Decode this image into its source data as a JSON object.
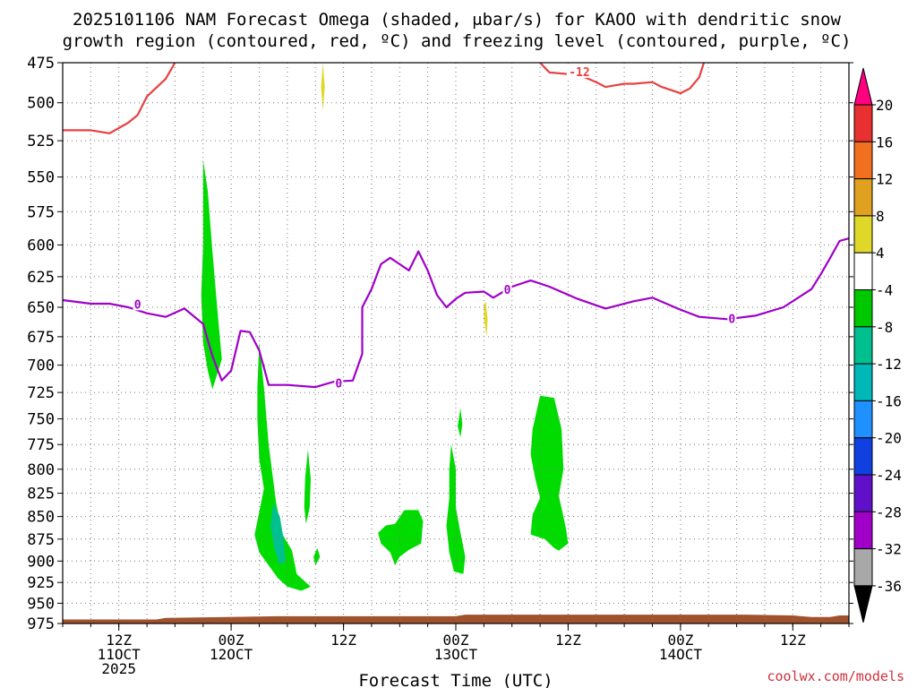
{
  "title_line1": "2025101106 NAM Forecast Omega (shaded, μbar/s) for KAOO with dendritic snow",
  "title_line2": "growth region (contoured, red, ºC) and freezing level (contoured, purple, ºC)",
  "xlabel": "Forecast Time (UTC)",
  "credit": "coolwx.com/models",
  "x_ticks": [
    {
      "hour": 6,
      "l1": "12Z",
      "l2": "11OCT",
      "l3": "2025"
    },
    {
      "hour": 18,
      "l1": "00Z",
      "l2": "12OCT",
      "l3": ""
    },
    {
      "hour": 30,
      "l1": "12Z",
      "l2": "",
      "l3": ""
    },
    {
      "hour": 42,
      "l1": "00Z",
      "l2": "13OCT",
      "l3": ""
    },
    {
      "hour": 54,
      "l1": "12Z",
      "l2": "",
      "l3": ""
    },
    {
      "hour": 66,
      "l1": "00Z",
      "l2": "14OCT",
      "l3": ""
    },
    {
      "hour": 78,
      "l1": "12Z",
      "l2": "",
      "l3": ""
    }
  ],
  "y_ticks": [
    475,
    500,
    525,
    550,
    575,
    600,
    625,
    650,
    675,
    700,
    725,
    750,
    775,
    800,
    825,
    850,
    875,
    900,
    925,
    950,
    975
  ],
  "colors": {
    "omega_green": "#00dc00",
    "omega_teal": "#00c090",
    "omega_yellow": "#e0d828",
    "dgz_red": "#e84040",
    "freezing_purple": "#a000c8",
    "terrain": "#a0522d",
    "grid": "#777777"
  },
  "colorbar": {
    "labels": [
      "20",
      "16",
      "12",
      "8",
      "4",
      "-4",
      "-8",
      "-12",
      "-16",
      "-20",
      "-24",
      "-28",
      "-32",
      "-36"
    ],
    "colors": [
      "#ff0080",
      "#e83030",
      "#f07020",
      "#e0a020",
      "#e0d828",
      "#ffffff",
      "#00c800",
      "#00c090",
      "#00b8b8",
      "#1e90ff",
      "#1040e0",
      "#6010c8",
      "#a000c8",
      "#a8a8a8",
      "#000000"
    ]
  },
  "chart_data": {
    "type": "heatmap",
    "x_unit": "forecast hour (valid 2025-10-11 06Z + hours)",
    "y_unit": "pressure (hPa)",
    "xlim": [
      0,
      84
    ],
    "ylim": [
      975,
      475
    ],
    "freezing_level_0C": {
      "label": "0",
      "points": [
        [
          0,
          644
        ],
        [
          3,
          647
        ],
        [
          5,
          647
        ],
        [
          7,
          650
        ],
        [
          9,
          655
        ],
        [
          11,
          658
        ],
        [
          13,
          651
        ],
        [
          15,
          664
        ],
        [
          16,
          692
        ],
        [
          17,
          714
        ],
        [
          18,
          705
        ],
        [
          19,
          670
        ],
        [
          20,
          671
        ],
        [
          21,
          687
        ],
        [
          22,
          718
        ],
        [
          24,
          718
        ],
        [
          27,
          720
        ],
        [
          29,
          715
        ],
        [
          31,
          714
        ],
        [
          32,
          690
        ],
        [
          32,
          650
        ],
        [
          33,
          635
        ],
        [
          34,
          615
        ],
        [
          35,
          610
        ],
        [
          36,
          615
        ],
        [
          37,
          620
        ],
        [
          38,
          605
        ],
        [
          39,
          620
        ],
        [
          40,
          640
        ],
        [
          41,
          650
        ],
        [
          42,
          643
        ],
        [
          43,
          638
        ],
        [
          45,
          637
        ],
        [
          46,
          642
        ],
        [
          48,
          633
        ],
        [
          50,
          628
        ],
        [
          52,
          633
        ],
        [
          55,
          643
        ],
        [
          58,
          651
        ],
        [
          61,
          645
        ],
        [
          63,
          642
        ],
        [
          66,
          652
        ],
        [
          68,
          658
        ],
        [
          71,
          660
        ],
        [
          74,
          657
        ],
        [
          77,
          650
        ],
        [
          80,
          635
        ],
        [
          81,
          623
        ],
        [
          82,
          610
        ],
        [
          83,
          597
        ],
        [
          84,
          595
        ]
      ]
    },
    "dgz_minus12C": [
      {
        "label": "",
        "points": [
          [
            0,
            518
          ],
          [
            3,
            518
          ],
          [
            5,
            520
          ],
          [
            7,
            513
          ],
          [
            8,
            508
          ],
          [
            9,
            496
          ],
          [
            11,
            485
          ],
          [
            12,
            475
          ]
        ]
      },
      {
        "label": "-12",
        "points": [
          [
            51,
            475
          ],
          [
            52,
            481
          ],
          [
            54,
            482
          ],
          [
            55,
            482
          ],
          [
            57,
            487
          ],
          [
            58,
            490
          ],
          [
            60,
            488
          ],
          [
            61,
            488
          ],
          [
            63,
            487
          ],
          [
            64,
            490
          ],
          [
            66,
            494
          ],
          [
            67,
            491
          ],
          [
            68,
            484
          ],
          [
            68.5,
            475
          ]
        ]
      }
    ],
    "omega_upward_areas": [
      {
        "level": "-4 to -8",
        "points": [
          [
            15,
            538
          ],
          [
            15.5,
            560
          ],
          [
            16,
            605
          ],
          [
            16.5,
            650
          ],
          [
            17,
            695
          ],
          [
            16,
            722
          ],
          [
            15.5,
            705
          ],
          [
            15,
            680
          ],
          [
            14.8,
            640
          ],
          [
            15,
            600
          ],
          [
            15,
            560
          ]
        ]
      },
      {
        "level": "-4 to -8",
        "points": [
          [
            21,
            680
          ],
          [
            21.5,
            720
          ],
          [
            22,
            775
          ],
          [
            22.8,
            835
          ],
          [
            23.5,
            870
          ],
          [
            24.5,
            888
          ],
          [
            25,
            915
          ],
          [
            26,
            925
          ],
          [
            26.5,
            930
          ],
          [
            25.5,
            935
          ],
          [
            24,
            930
          ],
          [
            23,
            920
          ],
          [
            22,
            905
          ],
          [
            21,
            890
          ],
          [
            20.5,
            870
          ],
          [
            21,
            845
          ],
          [
            21.5,
            820
          ],
          [
            21,
            790
          ],
          [
            20.8,
            750
          ],
          [
            20.8,
            720
          ]
        ]
      },
      {
        "level": "-4 to -8",
        "points": [
          [
            26.2,
            780
          ],
          [
            26.5,
            810
          ],
          [
            26.4,
            840
          ],
          [
            26,
            858
          ],
          [
            25.8,
            840
          ],
          [
            25.9,
            810
          ]
        ]
      },
      {
        "level": "-4 to -8",
        "points": [
          [
            27.2,
            885
          ],
          [
            27.5,
            895
          ],
          [
            27,
            905
          ],
          [
            26.8,
            895
          ]
        ]
      },
      {
        "level": "-4 to -8",
        "points": [
          [
            34.5,
            860
          ],
          [
            35.5,
            858
          ],
          [
            36.5,
            843
          ],
          [
            38,
            843
          ],
          [
            38.5,
            855
          ],
          [
            38.3,
            880
          ],
          [
            37,
            887
          ],
          [
            36,
            895
          ],
          [
            35.5,
            905
          ],
          [
            35,
            890
          ],
          [
            34,
            880
          ],
          [
            33.7,
            868
          ]
        ]
      },
      {
        "level": "-4 to -8",
        "points": [
          [
            41.5,
            775
          ],
          [
            42,
            800
          ],
          [
            42,
            840
          ],
          [
            42.5,
            868
          ],
          [
            43,
            895
          ],
          [
            42.8,
            915
          ],
          [
            41.8,
            912
          ],
          [
            41.3,
            890
          ],
          [
            41,
            860
          ],
          [
            41.3,
            830
          ],
          [
            41.3,
            800
          ]
        ]
      },
      {
        "level": "-4 to -8",
        "points": [
          [
            42.5,
            740
          ],
          [
            42.7,
            755
          ],
          [
            42.5,
            768
          ],
          [
            42.2,
            757
          ]
        ]
      },
      {
        "level": "-4 to -8",
        "points": [
          [
            51,
            728
          ],
          [
            52.5,
            730
          ],
          [
            53.3,
            760
          ],
          [
            53.5,
            800
          ],
          [
            53,
            828
          ],
          [
            53.5,
            850
          ],
          [
            53.8,
            865
          ],
          [
            54,
            880
          ],
          [
            53,
            888
          ],
          [
            52.5,
            885
          ],
          [
            51.5,
            875
          ],
          [
            50,
            870
          ],
          [
            50.2,
            848
          ],
          [
            51,
            830
          ],
          [
            50.5,
            810
          ],
          [
            50,
            785
          ],
          [
            50.2,
            760
          ]
        ]
      }
    ],
    "omega_upward_areas_stronger": [
      {
        "level": "-8 to -12",
        "points": [
          [
            22.5,
            835
          ],
          [
            23.2,
            850
          ],
          [
            23.6,
            875
          ],
          [
            23.8,
            900
          ],
          [
            23.2,
            905
          ],
          [
            22.6,
            885
          ],
          [
            22.2,
            860
          ]
        ]
      }
    ],
    "omega_downward_areas": [
      {
        "level": "4 to 8",
        "points": [
          [
            27.8,
            475
          ],
          [
            28,
            490
          ],
          [
            27.8,
            505
          ],
          [
            27.6,
            490
          ]
        ]
      },
      {
        "level": "4 to 8",
        "points": [
          [
            45.2,
            645
          ],
          [
            45.4,
            660
          ],
          [
            45.3,
            675
          ],
          [
            45,
            660
          ],
          [
            45,
            648
          ]
        ]
      }
    ],
    "terrain_top_hpa": [
      [
        0,
        970
      ],
      [
        10,
        970
      ],
      [
        11,
        968
      ],
      [
        23,
        966
      ],
      [
        42,
        966
      ],
      [
        43,
        964
      ],
      [
        73,
        964
      ],
      [
        78,
        965
      ],
      [
        80,
        967
      ],
      [
        82,
        967
      ],
      [
        83,
        965
      ],
      [
        84,
        965
      ]
    ]
  }
}
